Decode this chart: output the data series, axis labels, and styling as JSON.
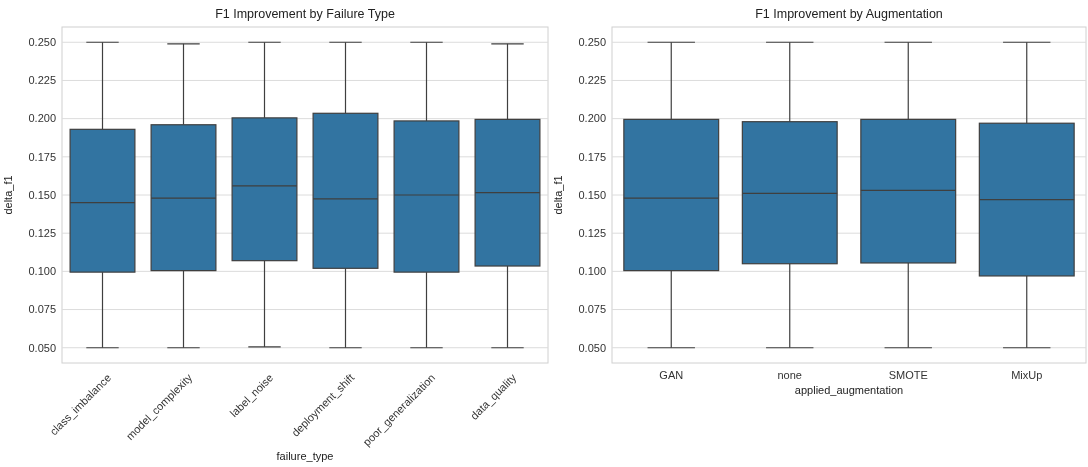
{
  "chart_data": [
    {
      "type": "box",
      "title": "F1 Improvement by Failure Type",
      "xlabel": "failure_type",
      "ylabel": "delta_f1",
      "categories": [
        "class_imbalance",
        "model_complexity",
        "label_noise",
        "deployment_shift",
        "poor_generalization",
        "data_quality"
      ],
      "series": [
        {
          "color": "#3274a1",
          "boxes": [
            {
              "low": 0.05,
              "q1": 0.0995,
              "median": 0.145,
              "q3": 0.193,
              "high": 0.25
            },
            {
              "low": 0.05,
              "q1": 0.1005,
              "median": 0.148,
              "q3": 0.196,
              "high": 0.249
            },
            {
              "low": 0.0505,
              "q1": 0.107,
              "median": 0.156,
              "q3": 0.2005,
              "high": 0.25
            },
            {
              "low": 0.05,
              "q1": 0.102,
              "median": 0.1475,
              "q3": 0.2035,
              "high": 0.25
            },
            {
              "low": 0.05,
              "q1": 0.0995,
              "median": 0.15,
              "q3": 0.1985,
              "high": 0.25
            },
            {
              "low": 0.05,
              "q1": 0.1035,
              "median": 0.1515,
              "q3": 0.1995,
              "high": 0.249
            }
          ]
        }
      ],
      "ylim": [
        0.04,
        0.26
      ],
      "yticks": [
        {
          "value": 0.05,
          "label": "0.050"
        },
        {
          "value": 0.075,
          "label": "0.075"
        },
        {
          "value": 0.1,
          "label": "0.100"
        },
        {
          "value": 0.125,
          "label": "0.125"
        },
        {
          "value": 0.15,
          "label": "0.150"
        },
        {
          "value": 0.175,
          "label": "0.175"
        },
        {
          "value": 0.2,
          "label": "0.200"
        },
        {
          "value": 0.225,
          "label": "0.225"
        },
        {
          "value": 0.25,
          "label": "0.250"
        }
      ],
      "grid": "y"
    },
    {
      "type": "box",
      "title": "F1 Improvement by Augmentation",
      "xlabel": "applied_augmentation",
      "ylabel": "delta_f1",
      "categories": [
        "GAN",
        "none",
        "SMOTE",
        "MixUp"
      ],
      "series": [
        {
          "color": "#3274a1",
          "boxes": [
            {
              "low": 0.05,
              "q1": 0.1005,
              "median": 0.148,
              "q3": 0.1995,
              "high": 0.25
            },
            {
              "low": 0.05,
              "q1": 0.105,
              "median": 0.151,
              "q3": 0.198,
              "high": 0.25
            },
            {
              "low": 0.05,
              "q1": 0.1055,
              "median": 0.153,
              "q3": 0.1995,
              "high": 0.25
            },
            {
              "low": 0.05,
              "q1": 0.097,
              "median": 0.147,
              "q3": 0.197,
              "high": 0.25
            }
          ]
        }
      ],
      "ylim": [
        0.04,
        0.26
      ],
      "yticks": [
        {
          "value": 0.05,
          "label": "0.050"
        },
        {
          "value": 0.075,
          "label": "0.075"
        },
        {
          "value": 0.1,
          "label": "0.100"
        },
        {
          "value": 0.125,
          "label": "0.125"
        },
        {
          "value": 0.15,
          "label": "0.150"
        },
        {
          "value": 0.175,
          "label": "0.175"
        },
        {
          "value": 0.2,
          "label": "0.200"
        },
        {
          "value": 0.225,
          "label": "0.225"
        },
        {
          "value": 0.25,
          "label": "0.250"
        }
      ],
      "grid": "y"
    }
  ]
}
